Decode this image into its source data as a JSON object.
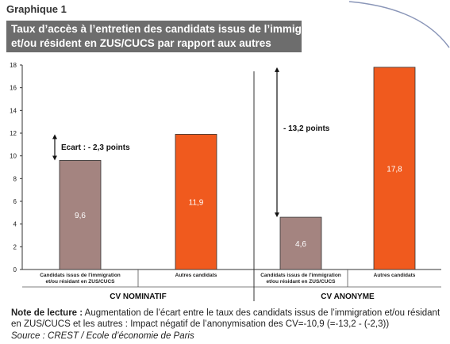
{
  "graph_label": "Graphique 1",
  "title_line1": "Taux d’accès à l’entretien des candidats issus de l’immigration",
  "title_line2": "et/ou résident en ZUS/CUCS par rapport aux autres",
  "chart_data": {
    "type": "bar",
    "ylim": [
      0,
      18
    ],
    "yticks": [
      0,
      2,
      4,
      6,
      8,
      10,
      12,
      14,
      16,
      18
    ],
    "groups": [
      {
        "label": "CV NOMINATIF",
        "bars": [
          {
            "category": "Candidats issus de l'immigration et/ou résidant en ZUS/CUCS",
            "cat_line1": "Candidats issus de l'immigration",
            "cat_line2": "et/ou résidant en ZUS/CUCS",
            "value": 9.6,
            "value_label": "9,6",
            "color": "#a48480"
          },
          {
            "category": "Autres candidats",
            "cat_line1": "Autres candidats",
            "cat_line2": "",
            "value": 11.9,
            "value_label": "11,9",
            "color": "#f05a1e"
          }
        ],
        "gap_label": "Ecart : - 2,3 points"
      },
      {
        "label": "CV ANONYME",
        "bars": [
          {
            "category": "Candidats issus de l'immigration et/ou résidant en ZUS/CUCS",
            "cat_line1": "Candidats issus de l'immigration",
            "cat_line2": "et/ou résidant en ZUS/CUCS",
            "value": 4.6,
            "value_label": "4,6",
            "color": "#a48480"
          },
          {
            "category": "Autres candidats",
            "cat_line1": "Autres candidats",
            "cat_line2": "",
            "value": 17.8,
            "value_label": "17,8",
            "color": "#f05a1e"
          }
        ],
        "gap_label": "- 13,2 points"
      }
    ]
  },
  "note_label": "Note de lecture :",
  "note_text": "Augmentation de l’écart entre le taux des candidats issus de l’immigration et/ou résidant en ZUS/CUCS et les autres : Impact négatif de l’anonymisation des CV=-10,9 (=-13,2 - (-2,3))",
  "source": "Source : CREST / Ecole d’économie de Paris",
  "colors": {
    "title_bg": "#6d6d6d",
    "brown_bar": "#a48480",
    "orange_bar": "#f05a1e"
  }
}
